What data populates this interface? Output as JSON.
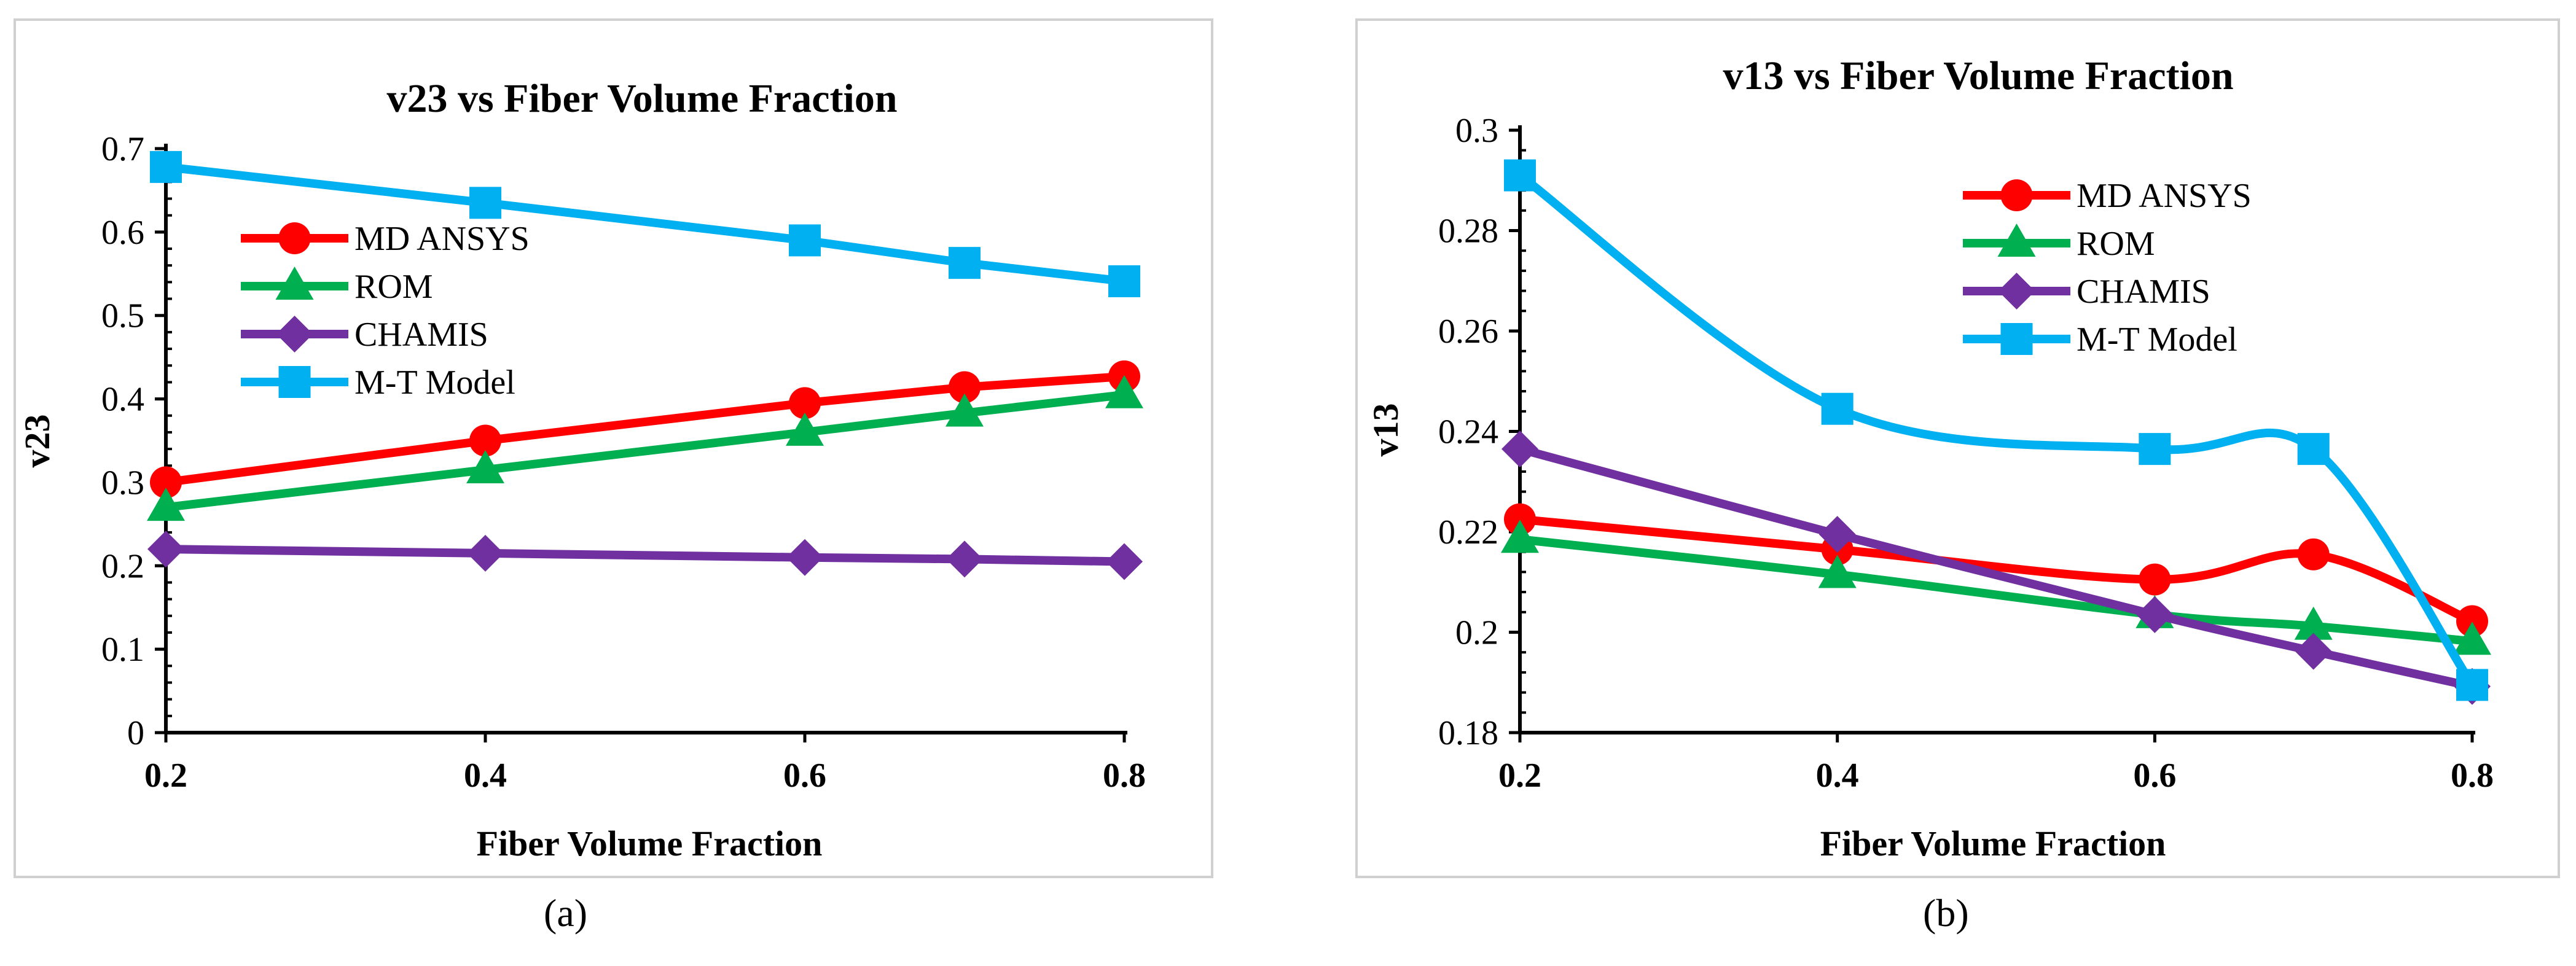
{
  "chart_data": [
    {
      "type": "line",
      "panel_label": "(a)",
      "title": "v23 vs Fiber Volume Fraction",
      "xlabel": "Fiber Volume Fraction",
      "ylabel": "v23",
      "x": [
        0.2,
        0.4,
        0.6,
        0.7,
        0.8
      ],
      "x_ticks": [
        0.2,
        0.4,
        0.6,
        0.8
      ],
      "x_tick_labels": [
        "0.2",
        "0.4",
        "0.6",
        "0.8"
      ],
      "xlim": [
        0.2,
        0.8
      ],
      "ylim": [
        0,
        0.7
      ],
      "y_ticks": [
        0,
        0.1,
        0.2,
        0.3,
        0.4,
        0.5,
        0.6,
        0.7
      ],
      "y_tick_labels": [
        "0",
        "0.1",
        "0.2",
        "0.3",
        "0.4",
        "0.5",
        "0.6",
        "0.7"
      ],
      "grid": false,
      "smooth": false,
      "legend_position": "upper-left",
      "series": [
        {
          "name": "MD ANSYS",
          "color": "#ff0000",
          "marker": "circle",
          "values": [
            0.3,
            0.35,
            0.395,
            0.414,
            0.427
          ]
        },
        {
          "name": "ROM",
          "color": "#00b050",
          "marker": "triangle",
          "values": [
            0.27,
            0.315,
            0.36,
            0.383,
            0.405
          ]
        },
        {
          "name": "CHAMIS",
          "color": "#7030a0",
          "marker": "diamond",
          "values": [
            0.22,
            0.215,
            0.21,
            0.208,
            0.205
          ]
        },
        {
          "name": "M-T Model",
          "color": "#00b0f0",
          "marker": "square",
          "values": [
            0.678,
            0.635,
            0.59,
            0.563,
            0.541
          ]
        }
      ]
    },
    {
      "type": "line",
      "panel_label": "(b)",
      "title": "v13 vs Fiber Volume Fraction",
      "xlabel": "Fiber Volume Fraction",
      "ylabel": "v13",
      "x": [
        0.2,
        0.4,
        0.6,
        0.7,
        0.8
      ],
      "x_ticks": [
        0.2,
        0.4,
        0.6,
        0.8
      ],
      "x_tick_labels": [
        "0.2",
        "0.4",
        "0.6",
        "0.8"
      ],
      "xlim": [
        0.2,
        0.8
      ],
      "ylim": [
        0.18,
        0.3
      ],
      "y_ticks": [
        0.18,
        0.2,
        0.22,
        0.24,
        0.26,
        0.28,
        0.3
      ],
      "y_tick_labels": [
        "0.18",
        "0.2",
        "0.22",
        "0.24",
        "0.26",
        "0.28",
        "0.3"
      ],
      "grid": false,
      "smooth": true,
      "legend_position": "upper-center",
      "series": [
        {
          "name": "MD ANSYS",
          "color": "#ff0000",
          "marker": "circle",
          "values": [
            0.2225,
            0.2165,
            0.2105,
            0.2155,
            0.2022
          ]
        },
        {
          "name": "ROM",
          "color": "#00b050",
          "marker": "triangle",
          "values": [
            0.2185,
            0.2115,
            0.2035,
            0.2012,
            0.1982
          ]
        },
        {
          "name": "CHAMIS",
          "color": "#7030a0",
          "marker": "diamond",
          "values": [
            0.2365,
            0.2195,
            0.2035,
            0.1962,
            0.1892
          ]
        },
        {
          "name": "M-T Model",
          "color": "#00b0f0",
          "marker": "square",
          "values": [
            0.291,
            0.2445,
            0.2365,
            0.2365,
            0.1895
          ]
        }
      ]
    }
  ]
}
